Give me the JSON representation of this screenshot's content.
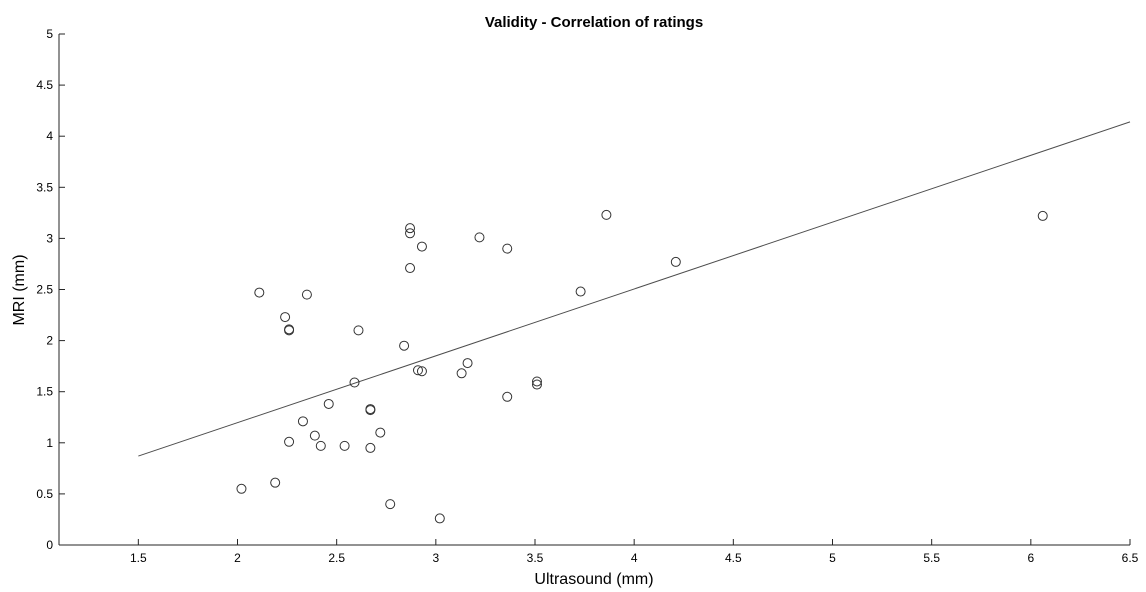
{
  "chart_data": {
    "type": "scatter",
    "title": "Validity - Correlation of ratings",
    "xlabel": "Ultrasound (mm)",
    "ylabel": "MRI (mm)",
    "xlim": [
      1.1,
      6.5
    ],
    "ylim": [
      0,
      5
    ],
    "xticks": [
      "1.5",
      "2",
      "2.5",
      "3",
      "3.5",
      "4",
      "4.5",
      "5",
      "5.5",
      "6",
      "6.5"
    ],
    "yticks": [
      "0",
      "0.5",
      "1",
      "1.5",
      "2",
      "2.5",
      "3",
      "3.5",
      "4",
      "4.5",
      "5"
    ],
    "grid": false,
    "series": [
      {
        "marker": "open-circle",
        "color": "#333333",
        "points": [
          [
            2.02,
            0.55
          ],
          [
            2.11,
            2.47
          ],
          [
            2.19,
            0.61
          ],
          [
            2.24,
            2.23
          ],
          [
            2.26,
            2.11
          ],
          [
            2.26,
            2.1
          ],
          [
            2.26,
            1.01
          ],
          [
            2.33,
            1.21
          ],
          [
            2.35,
            2.45
          ],
          [
            2.39,
            1.07
          ],
          [
            2.42,
            0.97
          ],
          [
            2.46,
            1.38
          ],
          [
            2.54,
            0.97
          ],
          [
            2.59,
            1.59
          ],
          [
            2.61,
            2.1
          ],
          [
            2.67,
            1.33
          ],
          [
            2.67,
            1.32
          ],
          [
            2.67,
            0.95
          ],
          [
            2.72,
            1.1
          ],
          [
            2.77,
            0.4
          ],
          [
            2.84,
            1.95
          ],
          [
            2.87,
            3.1
          ],
          [
            2.87,
            3.05
          ],
          [
            2.87,
            2.71
          ],
          [
            2.91,
            1.71
          ],
          [
            2.93,
            2.92
          ],
          [
            2.93,
            1.7
          ],
          [
            3.02,
            0.26
          ],
          [
            3.13,
            1.68
          ],
          [
            3.16,
            1.78
          ],
          [
            3.22,
            3.01
          ],
          [
            3.36,
            2.9
          ],
          [
            3.36,
            1.45
          ],
          [
            3.51,
            1.6
          ],
          [
            3.51,
            1.57
          ],
          [
            3.73,
            2.48
          ],
          [
            3.86,
            3.23
          ],
          [
            4.21,
            2.77
          ],
          [
            6.06,
            3.22
          ]
        ]
      }
    ],
    "fit_line": {
      "x1": 1.5,
      "y1": 0.87,
      "x2": 6.5,
      "y2": 4.14,
      "color": "#4d4d4d"
    }
  }
}
